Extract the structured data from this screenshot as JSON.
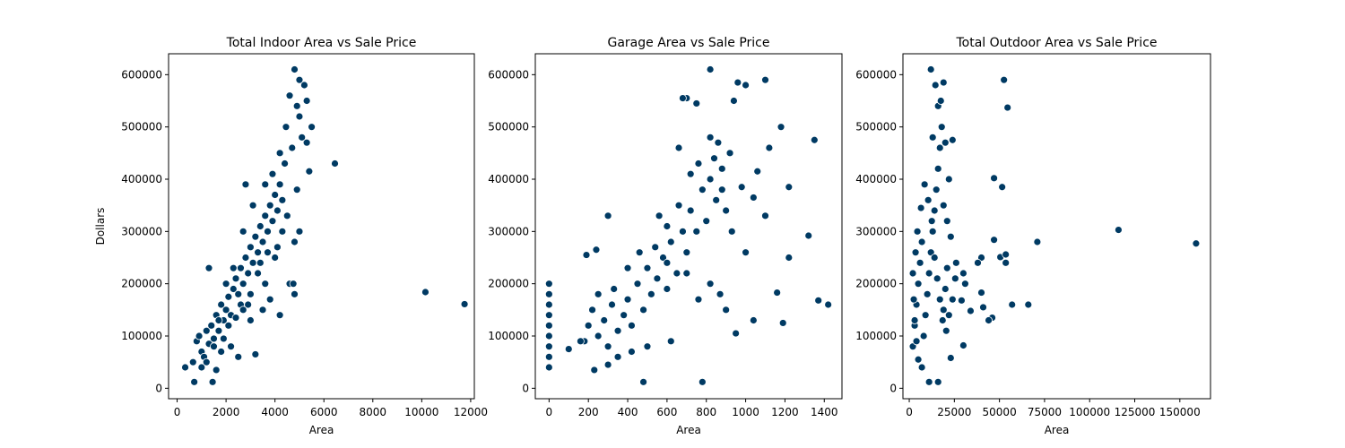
{
  "chart_data": [
    {
      "type": "scatter",
      "title": "Total Indoor Area vs Sale Price",
      "xlabel": "Area",
      "ylabel": "Dollars",
      "xlim": [
        -350,
        12150
      ],
      "ylim": [
        -20000,
        640000
      ],
      "xticks": [
        0,
        2000,
        4000,
        6000,
        8000,
        10000,
        12000
      ],
      "yticks": [
        0,
        100000,
        200000,
        300000,
        400000,
        500000,
        600000
      ],
      "x_tick_labels": [
        "0",
        "2000",
        "4000",
        "6000",
        "8000",
        "10000",
        "12000"
      ],
      "y_tick_labels": [
        "0",
        "100000",
        "200000",
        "300000",
        "400000",
        "500000",
        "600000"
      ],
      "points": [
        [
          330,
          40000
        ],
        [
          700,
          12000
        ],
        [
          1450,
          12000
        ],
        [
          650,
          50000
        ],
        [
          800,
          90000
        ],
        [
          900,
          100000
        ],
        [
          1000,
          70000
        ],
        [
          1100,
          60000
        ],
        [
          1200,
          110000
        ],
        [
          1300,
          85000
        ],
        [
          1400,
          120000
        ],
        [
          1500,
          95000
        ],
        [
          1600,
          140000
        ],
        [
          1700,
          110000
        ],
        [
          1800,
          160000
        ],
        [
          1900,
          130000
        ],
        [
          2000,
          150000
        ],
        [
          2100,
          175000
        ],
        [
          2200,
          140000
        ],
        [
          2300,
          190000
        ],
        [
          2400,
          210000
        ],
        [
          2500,
          180000
        ],
        [
          2600,
          230000
        ],
        [
          2700,
          200000
        ],
        [
          2800,
          250000
        ],
        [
          2900,
          220000
        ],
        [
          3000,
          270000
        ],
        [
          3100,
          240000
        ],
        [
          3200,
          290000
        ],
        [
          3300,
          260000
        ],
        [
          3400,
          310000
        ],
        [
          3500,
          280000
        ],
        [
          3600,
          330000
        ],
        [
          3700,
          300000
        ],
        [
          3800,
          350000
        ],
        [
          3900,
          320000
        ],
        [
          4000,
          370000
        ],
        [
          4100,
          340000
        ],
        [
          4200,
          390000
        ],
        [
          4300,
          360000
        ],
        [
          1300,
          230000
        ],
        [
          2800,
          390000
        ],
        [
          4600,
          200000
        ],
        [
          4750,
          200000
        ],
        [
          4800,
          180000
        ],
        [
          4800,
          610000
        ],
        [
          5000,
          590000
        ],
        [
          5200,
          580000
        ],
        [
          4900,
          540000
        ],
        [
          5000,
          520000
        ],
        [
          5300,
          550000
        ],
        [
          5500,
          500000
        ],
        [
          5100,
          480000
        ],
        [
          5300,
          470000
        ],
        [
          5400,
          415000
        ],
        [
          6450,
          430000
        ],
        [
          10150,
          184000
        ],
        [
          11750,
          161000
        ],
        [
          4200,
          140000
        ],
        [
          4600,
          560000
        ],
        [
          4450,
          500000
        ],
        [
          4700,
          460000
        ],
        [
          4900,
          380000
        ],
        [
          5000,
          300000
        ],
        [
          4800,
          280000
        ],
        [
          4500,
          330000
        ],
        [
          4200,
          450000
        ],
        [
          4400,
          430000
        ],
        [
          3900,
          410000
        ],
        [
          3600,
          390000
        ],
        [
          1000,
          40000
        ],
        [
          1200,
          50000
        ],
        [
          1600,
          35000
        ],
        [
          1800,
          70000
        ],
        [
          2200,
          80000
        ],
        [
          2500,
          60000
        ],
        [
          3000,
          130000
        ],
        [
          3200,
          65000
        ],
        [
          3500,
          150000
        ],
        [
          3800,
          170000
        ],
        [
          2000,
          200000
        ],
        [
          2300,
          230000
        ],
        [
          2600,
          160000
        ],
        [
          2900,
          160000
        ],
        [
          3300,
          220000
        ],
        [
          3600,
          200000
        ],
        [
          4000,
          250000
        ],
        [
          4300,
          300000
        ],
        [
          3100,
          350000
        ],
        [
          2700,
          300000
        ],
        [
          1500,
          80000
        ],
        [
          1700,
          130000
        ],
        [
          1900,
          95000
        ],
        [
          2100,
          120000
        ],
        [
          2400,
          135000
        ],
        [
          2700,
          150000
        ],
        [
          3000,
          180000
        ],
        [
          3400,
          240000
        ],
        [
          3700,
          260000
        ],
        [
          4100,
          270000
        ]
      ]
    },
    {
      "type": "scatter",
      "title": "Garage Area vs Sale Price",
      "xlabel": "Area",
      "ylabel": "",
      "xlim": [
        -70,
        1490
      ],
      "ylim": [
        -20000,
        640000
      ],
      "xticks": [
        0,
        200,
        400,
        600,
        800,
        1000,
        1200,
        1400
      ],
      "yticks": [
        0,
        100000,
        200000,
        300000,
        400000,
        500000,
        600000
      ],
      "x_tick_labels": [
        "0",
        "200",
        "400",
        "600",
        "800",
        "1000",
        "1200",
        "1400"
      ],
      "y_tick_labels": [
        "0",
        "100000",
        "200000",
        "300000",
        "400000",
        "500000",
        "600000"
      ],
      "points": [
        [
          0,
          40000
        ],
        [
          0,
          60000
        ],
        [
          0,
          80000
        ],
        [
          0,
          100000
        ],
        [
          0,
          120000
        ],
        [
          0,
          140000
        ],
        [
          0,
          160000
        ],
        [
          0,
          180000
        ],
        [
          0,
          200000
        ],
        [
          100,
          75000
        ],
        [
          180,
          90000
        ],
        [
          200,
          120000
        ],
        [
          220,
          150000
        ],
        [
          250,
          100000
        ],
        [
          280,
          130000
        ],
        [
          300,
          80000
        ],
        [
          320,
          160000
        ],
        [
          350,
          110000
        ],
        [
          380,
          140000
        ],
        [
          400,
          170000
        ],
        [
          420,
          120000
        ],
        [
          450,
          200000
        ],
        [
          480,
          150000
        ],
        [
          500,
          230000
        ],
        [
          520,
          180000
        ],
        [
          550,
          210000
        ],
        [
          580,
          250000
        ],
        [
          600,
          190000
        ],
        [
          620,
          280000
        ],
        [
          650,
          220000
        ],
        [
          680,
          300000
        ],
        [
          700,
          260000
        ],
        [
          720,
          340000
        ],
        [
          750,
          300000
        ],
        [
          780,
          380000
        ],
        [
          800,
          320000
        ],
        [
          820,
          400000
        ],
        [
          850,
          360000
        ],
        [
          880,
          420000
        ],
        [
          900,
          340000
        ],
        [
          480,
          12000
        ],
        [
          780,
          12000
        ],
        [
          820,
          610000
        ],
        [
          960,
          585000
        ],
        [
          1000,
          580000
        ],
        [
          1100,
          590000
        ],
        [
          940,
          550000
        ],
        [
          1350,
          475000
        ],
        [
          1180,
          500000
        ],
        [
          1120,
          460000
        ],
        [
          1060,
          415000
        ],
        [
          1220,
          385000
        ],
        [
          1320,
          292000
        ],
        [
          1220,
          250000
        ],
        [
          1420,
          160000
        ],
        [
          1370,
          168000
        ],
        [
          1190,
          125000
        ],
        [
          1160,
          183000
        ],
        [
          1040,
          130000
        ],
        [
          950,
          105000
        ],
        [
          660,
          460000
        ],
        [
          700,
          555000
        ],
        [
          750,
          545000
        ],
        [
          680,
          555000
        ],
        [
          820,
          480000
        ],
        [
          860,
          470000
        ],
        [
          920,
          450000
        ],
        [
          980,
          385000
        ],
        [
          1040,
          365000
        ],
        [
          1100,
          330000
        ],
        [
          300,
          330000
        ],
        [
          240,
          265000
        ],
        [
          190,
          255000
        ],
        [
          160,
          90000
        ],
        [
          230,
          35000
        ],
        [
          300,
          45000
        ],
        [
          350,
          60000
        ],
        [
          420,
          70000
        ],
        [
          500,
          80000
        ],
        [
          620,
          90000
        ],
        [
          560,
          330000
        ],
        [
          600,
          310000
        ],
        [
          660,
          350000
        ],
        [
          720,
          410000
        ],
        [
          760,
          430000
        ],
        [
          840,
          440000
        ],
        [
          880,
          380000
        ],
        [
          930,
          300000
        ],
        [
          1000,
          260000
        ],
        [
          870,
          180000
        ],
        [
          250,
          180000
        ],
        [
          330,
          190000
        ],
        [
          400,
          230000
        ],
        [
          460,
          260000
        ],
        [
          540,
          270000
        ],
        [
          600,
          240000
        ],
        [
          700,
          220000
        ],
        [
          760,
          170000
        ],
        [
          820,
          200000
        ],
        [
          900,
          150000
        ]
      ]
    },
    {
      "type": "scatter",
      "title": "Total Outdoor Area vs Sale Price",
      "xlabel": "Area",
      "ylabel": "",
      "xlim": [
        -3500,
        167000
      ],
      "ylim": [
        -20000,
        640000
      ],
      "xticks": [
        0,
        25000,
        50000,
        75000,
        100000,
        125000,
        150000
      ],
      "yticks": [
        0,
        100000,
        200000,
        300000,
        400000,
        500000,
        600000
      ],
      "x_tick_labels": [
        "0",
        "25000",
        "50000",
        "75000",
        "100000",
        "125000",
        "150000"
      ],
      "y_tick_labels": [
        "0",
        "100000",
        "200000",
        "300000",
        "400000",
        "500000",
        "600000"
      ],
      "points": [
        [
          2000,
          80000
        ],
        [
          3000,
          120000
        ],
        [
          4000,
          160000
        ],
        [
          5000,
          200000
        ],
        [
          6000,
          240000
        ],
        [
          7000,
          280000
        ],
        [
          8000,
          100000
        ],
        [
          9000,
          140000
        ],
        [
          10000,
          180000
        ],
        [
          11000,
          220000
        ],
        [
          12000,
          260000
        ],
        [
          13000,
          300000
        ],
        [
          14000,
          340000
        ],
        [
          15000,
          380000
        ],
        [
          16000,
          420000
        ],
        [
          17000,
          460000
        ],
        [
          18000,
          500000
        ],
        [
          19000,
          150000
        ],
        [
          20000,
          190000
        ],
        [
          21000,
          230000
        ],
        [
          12000,
          610000
        ],
        [
          14500,
          580000
        ],
        [
          19000,
          585000
        ],
        [
          16000,
          540000
        ],
        [
          17500,
          550000
        ],
        [
          13000,
          480000
        ],
        [
          20000,
          470000
        ],
        [
          24000,
          475000
        ],
        [
          22000,
          400000
        ],
        [
          52500,
          590000
        ],
        [
          54500,
          537000
        ],
        [
          47000,
          402000
        ],
        [
          51500,
          385000
        ],
        [
          47000,
          284000
        ],
        [
          50500,
          251000
        ],
        [
          53500,
          256000
        ],
        [
          53500,
          240000
        ],
        [
          57000,
          160000
        ],
        [
          66000,
          160000
        ],
        [
          71000,
          280000
        ],
        [
          116000,
          303000
        ],
        [
          159000,
          277000
        ],
        [
          40000,
          250000
        ],
        [
          38000,
          240000
        ],
        [
          40000,
          183000
        ],
        [
          41000,
          155000
        ],
        [
          46000,
          135000
        ],
        [
          44000,
          130000
        ],
        [
          30000,
          220000
        ],
        [
          31000,
          200000
        ],
        [
          29000,
          168000
        ],
        [
          34000,
          148000
        ],
        [
          30000,
          82000
        ],
        [
          23000,
          58000
        ],
        [
          16000,
          12000
        ],
        [
          11000,
          12000
        ],
        [
          7000,
          40000
        ],
        [
          5000,
          55000
        ],
        [
          4000,
          90000
        ],
        [
          3000,
          130000
        ],
        [
          2500,
          170000
        ],
        [
          2000,
          220000
        ],
        [
          3500,
          260000
        ],
        [
          4500,
          300000
        ],
        [
          6500,
          345000
        ],
        [
          8500,
          390000
        ],
        [
          10500,
          360000
        ],
        [
          12500,
          320000
        ],
        [
          14000,
          250000
        ],
        [
          15500,
          210000
        ],
        [
          17000,
          170000
        ],
        [
          18500,
          130000
        ],
        [
          20500,
          110000
        ],
        [
          22000,
          140000
        ],
        [
          24000,
          170000
        ],
        [
          25500,
          210000
        ],
        [
          26000,
          240000
        ],
        [
          23000,
          290000
        ],
        [
          21000,
          320000
        ],
        [
          19000,
          350000
        ]
      ]
    }
  ]
}
